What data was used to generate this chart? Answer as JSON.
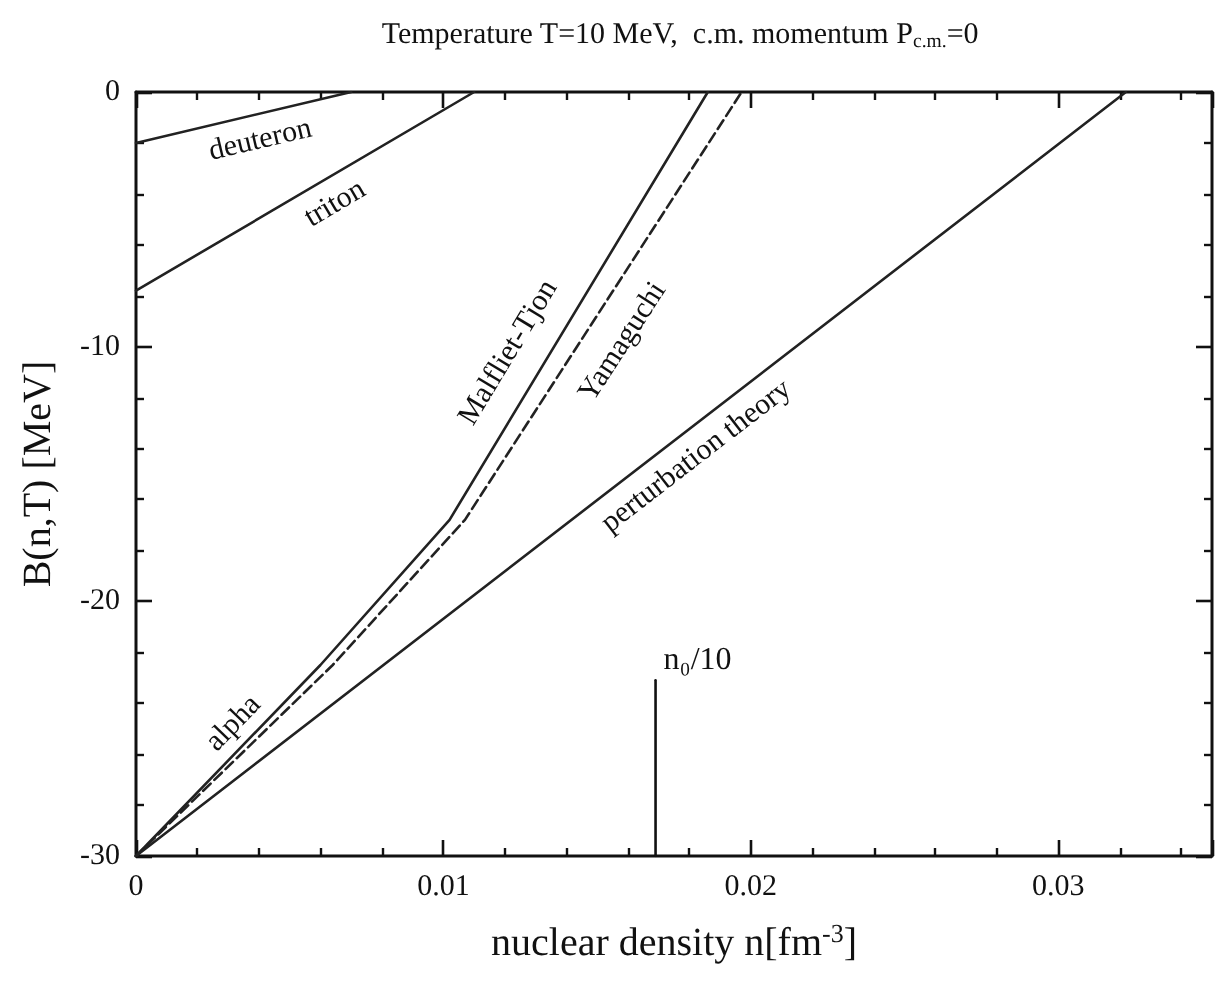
{
  "chart_data": {
    "type": "line",
    "title": "Temperature T=10 MeV,  c.m. momentum P$_{c.m.}$=0",
    "xlabel": "nuclear density n[fm$^{-3}$]",
    "ylabel": "B(n,T) [MeV]",
    "xlim": [
      0,
      0.035
    ],
    "xticks": [
      0,
      0.01,
      0.02,
      0.03
    ],
    "ylim": [
      -30,
      0
    ],
    "yticks": [
      -30,
      -20,
      -10,
      0
    ],
    "marker": "none",
    "series": [
      {
        "name": "deuteron",
        "color": "#222222",
        "x": [
          0,
          0.007
        ],
        "values": [
          -2.0,
          0
        ]
      },
      {
        "name": "triton",
        "color": "#222222",
        "x": [
          0,
          0.011
        ],
        "values": [
          -7.8,
          0
        ]
      },
      {
        "name": "Malfliet-Tjon",
        "color": "#222222",
        "x": [
          0,
          0.006,
          0.0102,
          0.0186
        ],
        "values": [
          -30,
          -22.5,
          -16.8,
          0
        ]
      },
      {
        "name": "Yamaguchi",
        "color": "#222222",
        "line_style": "dashed",
        "x": [
          0,
          0.0064,
          0.0107,
          0.0197
        ],
        "values": [
          -30,
          -22.5,
          -16.8,
          0
        ]
      },
      {
        "name": "perturbation theory",
        "color": "#222222",
        "x": [
          0,
          0.0322
        ],
        "values": [
          -30,
          0
        ]
      },
      {
        "color": "#111111",
        "x": [
          0.0169,
          0.0169
        ],
        "values": [
          -30,
          -23.1
        ]
      }
    ],
    "annotations": [
      "alpha",
      {
        "text": "n₀/10",
        "x": 0.0169,
        "y": -23.1
      }
    ]
  }
}
